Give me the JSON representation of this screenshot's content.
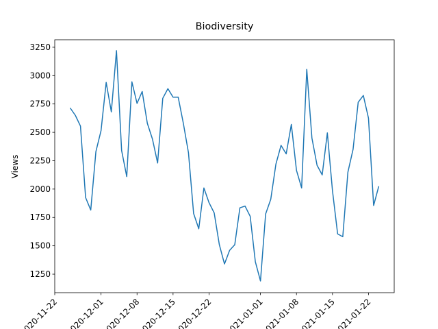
{
  "chart_data": {
    "type": "line",
    "title": "Biodiversity",
    "ylabel": "Views",
    "x": [
      "2020-11-25",
      "2020-11-26",
      "2020-11-27",
      "2020-11-28",
      "2020-11-29",
      "2020-11-30",
      "2020-12-01",
      "2020-12-02",
      "2020-12-03",
      "2020-12-04",
      "2020-12-05",
      "2020-12-06",
      "2020-12-07",
      "2020-12-08",
      "2020-12-09",
      "2020-12-10",
      "2020-12-11",
      "2020-12-12",
      "2020-12-13",
      "2020-12-14",
      "2020-12-15",
      "2020-12-16",
      "2020-12-17",
      "2020-12-18",
      "2020-12-19",
      "2020-12-20",
      "2020-12-21",
      "2020-12-22",
      "2020-12-23",
      "2020-12-24",
      "2020-12-25",
      "2020-12-26",
      "2020-12-27",
      "2020-12-28",
      "2020-12-29",
      "2020-12-30",
      "2020-12-31",
      "2021-01-01",
      "2021-01-02",
      "2021-01-03",
      "2021-01-04",
      "2021-01-05",
      "2021-01-06",
      "2021-01-07",
      "2021-01-08",
      "2021-01-09",
      "2021-01-10",
      "2021-01-11",
      "2021-01-12",
      "2021-01-13",
      "2021-01-14",
      "2021-01-15",
      "2021-01-16",
      "2021-01-17",
      "2021-01-18",
      "2021-01-19",
      "2021-01-20",
      "2021-01-21",
      "2021-01-22",
      "2021-01-23",
      "2021-01-24"
    ],
    "series": [
      {
        "color": "#1f77b4",
        "values": [
          2715,
          2650,
          2555,
          1925,
          1815,
          2330,
          2515,
          2940,
          2680,
          3220,
          2340,
          2110,
          2945,
          2755,
          2860,
          2580,
          2440,
          2230,
          2800,
          2885,
          2810,
          2810,
          2580,
          2320,
          1785,
          1650,
          2010,
          1880,
          1790,
          1510,
          1340,
          1460,
          1510,
          1835,
          1850,
          1760,
          1360,
          1190,
          1780,
          1910,
          2220,
          2385,
          2310,
          2570,
          2165,
          2010,
          3055,
          2450,
          2210,
          2125,
          2495,
          1985,
          1605,
          1580,
          2150,
          2350,
          2765,
          2825,
          2625,
          1855,
          2025
        ]
      }
    ],
    "xlim": [
      "2020-11-22",
      "2021-01-27"
    ],
    "xticks": [
      "2020-11-22",
      "2020-12-01",
      "2020-12-08",
      "2020-12-15",
      "2020-12-22",
      "2021-01-01",
      "2021-01-08",
      "2021-01-15",
      "2021-01-22"
    ],
    "ylim": [
      1087,
      3316
    ],
    "yticks": [
      1250,
      1500,
      1750,
      2000,
      2250,
      2500,
      2750,
      3000,
      3250
    ]
  }
}
